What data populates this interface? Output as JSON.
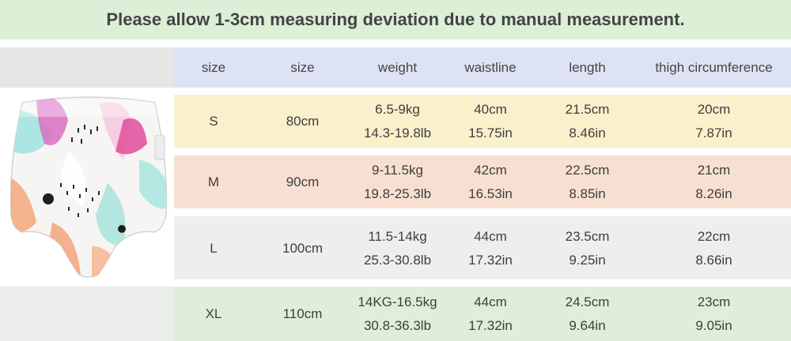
{
  "notice": "Please allow 1-3cm measuring deviation due to manual measurement.",
  "colors": {
    "banner_bg": "#dcefd7",
    "header_bg": "#dde3f4",
    "row_s_bg": "#faf0cb",
    "row_m_bg": "#f7e0d2",
    "row_l_bg": "#eeeeee",
    "row_xl_bg": "#dfeed8"
  },
  "product_image": "printed-training-pants-icon",
  "table": {
    "headers": [
      "size",
      "size",
      "weight",
      "waistline",
      "length",
      "thigh circumference"
    ],
    "rows": [
      {
        "size": "S",
        "height": "80cm",
        "weight": "6.5-9kg",
        "weight_lb": "14.3-19.8lb",
        "waist": "40cm",
        "waist_in": "15.75in",
        "length": "21.5cm",
        "length_in": "8.46in",
        "thigh": "20cm",
        "thigh_in": "7.87in"
      },
      {
        "size": "M",
        "height": "90cm",
        "weight": "9-11.5kg",
        "weight_lb": "19.8-25.3lb",
        "waist": "42cm",
        "waist_in": "16.53in",
        "length": "22.5cm",
        "length_in": "8.85in",
        "thigh": "21cm",
        "thigh_in": "8.26in"
      },
      {
        "size": "L",
        "height": "100cm",
        "weight": "11.5-14kg",
        "weight_lb": "25.3-30.8lb",
        "waist": "44cm",
        "waist_in": "17.32in",
        "length": "23.5cm",
        "length_in": "9.25in",
        "thigh": "22cm",
        "thigh_in": "8.66in"
      },
      {
        "size": "XL",
        "height": "110cm",
        "weight": "14KG-16.5kg",
        "weight_lb": "30.8-36.3lb",
        "waist": "44cm",
        "waist_in": "17.32in",
        "length": "24.5cm",
        "length_in": "9.64in",
        "thigh": "23cm",
        "thigh_in": "9.05in"
      }
    ]
  }
}
